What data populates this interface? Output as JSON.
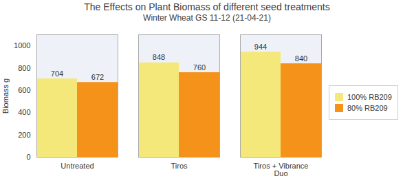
{
  "chart_data": {
    "type": "bar",
    "title": "The Effects on Plant Biomass of different seed treatments",
    "subtitle": "Winter Wheat GS 11-12 (21-04-21)",
    "ylabel": "Biomass g",
    "categories": [
      "Untreated",
      "Tiros",
      "Tiros + Vibrance\nDuo"
    ],
    "series": [
      {
        "name": "100% RB209",
        "values": [
          704,
          848,
          944
        ],
        "color": "#F5E87A"
      },
      {
        "name": "80% RB209",
        "values": [
          672,
          760,
          840
        ],
        "color": "#F4921A"
      }
    ],
    "ylim": [
      0,
      1100
    ],
    "yticks": [
      0,
      200,
      400,
      600,
      800,
      1000
    ],
    "grid": true,
    "legend": "right",
    "data_labels": true
  }
}
